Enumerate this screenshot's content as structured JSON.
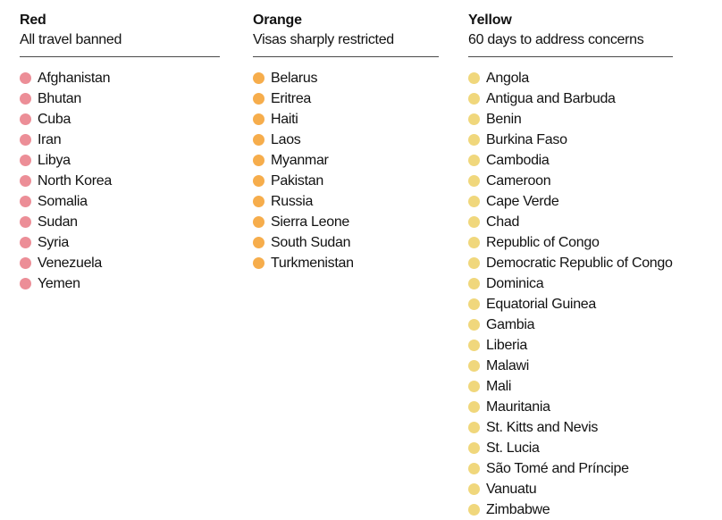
{
  "chart_data": {
    "type": "table",
    "title": "",
    "categories": [
      "Red",
      "Orange",
      "Yellow"
    ],
    "series": [
      {
        "name": "Red",
        "description": "All travel banned",
        "color": "#ec8e97",
        "values": [
          "Afghanistan",
          "Bhutan",
          "Cuba",
          "Iran",
          "Libya",
          "North Korea",
          "Somalia",
          "Sudan",
          "Syria",
          "Venezuela",
          "Yemen"
        ]
      },
      {
        "name": "Orange",
        "description": "Visas sharply restricted",
        "color": "#f6ad4c",
        "values": [
          "Belarus",
          "Eritrea",
          "Haiti",
          "Laos",
          "Myanmar",
          "Pakistan",
          "Russia",
          "Sierra Leone",
          "South Sudan",
          "Turkmenistan"
        ]
      },
      {
        "name": "Yellow",
        "description": "60 days to address concerns",
        "color": "#f0d77c",
        "values": [
          "Angola",
          "Antigua and Barbuda",
          "Benin",
          "Burkina Faso",
          "Cambodia",
          "Cameroon",
          "Cape Verde",
          "Chad",
          "Republic of Congo",
          "Democratic Republic of Congo",
          "Dominica",
          "Equatorial Guinea",
          "Gambia",
          "Liberia",
          "Malawi",
          "Mali",
          "Mauritania",
          "St. Kitts and Nevis",
          "St. Lucia",
          "São Tomé and Príncipe",
          "Vanuatu",
          "Zimbabwe"
        ]
      }
    ],
    "layout": {
      "columns": 3,
      "bullet": "filled-circle",
      "grid": false,
      "legend_position": "none"
    }
  },
  "columns": [
    {
      "title": "Red",
      "subtitle": "All travel banned",
      "dot_color": "#ec8e97",
      "countries": [
        "Afghanistan",
        "Bhutan",
        "Cuba",
        "Iran",
        "Libya",
        "North Korea",
        "Somalia",
        "Sudan",
        "Syria",
        "Venezuela",
        "Yemen"
      ]
    },
    {
      "title": "Orange",
      "subtitle": "Visas sharply restricted",
      "dot_color": "#f6ad4c",
      "countries": [
        "Belarus",
        "Eritrea",
        "Haiti",
        "Laos",
        "Myanmar",
        "Pakistan",
        "Russia",
        "Sierra Leone",
        "South Sudan",
        "Turkmenistan"
      ]
    },
    {
      "title": "Yellow",
      "subtitle": "60 days to address concerns",
      "dot_color": "#f0d77c",
      "countries": [
        "Angola",
        "Antigua and Barbuda",
        "Benin",
        "Burkina Faso",
        "Cambodia",
        "Cameroon",
        "Cape Verde",
        "Chad",
        "Republic of Congo",
        "Democratic Republic of Congo",
        "Dominica",
        "Equatorial Guinea",
        "Gambia",
        "Liberia",
        "Malawi",
        "Mali",
        "Mauritania",
        "St. Kitts and Nevis",
        "St. Lucia",
        "São Tomé and Príncipe",
        "Vanuatu",
        "Zimbabwe"
      ]
    }
  ],
  "text_color": "#121212",
  "rule_color": "#4a4a4a"
}
